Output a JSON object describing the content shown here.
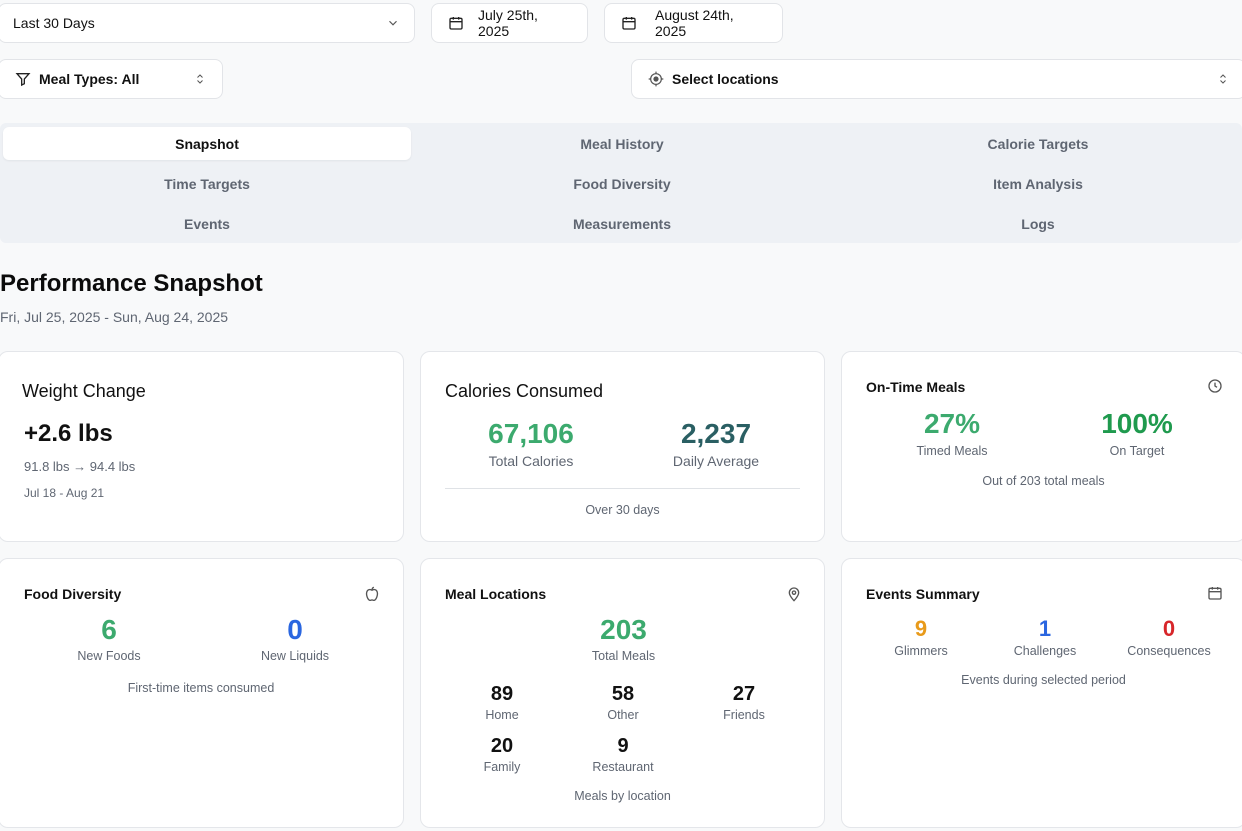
{
  "filters": {
    "range_label": "Last 30 Days",
    "start_date": "July 25th, 2025",
    "end_date": "August 24th, 2025",
    "meal_types_label": "Meal Types: All",
    "locations_label": "Select locations"
  },
  "tabs": [
    {
      "label": "Snapshot",
      "active": true
    },
    {
      "label": "Meal History"
    },
    {
      "label": "Calorie Targets"
    },
    {
      "label": "Time Targets"
    },
    {
      "label": "Food Diversity"
    },
    {
      "label": "Item Analysis"
    },
    {
      "label": "Events"
    },
    {
      "label": "Measurements"
    },
    {
      "label": "Logs"
    }
  ],
  "page": {
    "title": "Performance Snapshot",
    "date_range": "Fri, Jul 25, 2025 - Sun, Aug 24, 2025"
  },
  "weight_change": {
    "title": "Weight Change",
    "value": "+2.6 lbs",
    "detail": "91.8 lbs → 94.4 lbs",
    "period": "Jul 18 - Aug 21"
  },
  "calories": {
    "title": "Calories Consumed",
    "total": "67,106",
    "total_label": "Total Calories",
    "average": "2,237",
    "average_label": "Daily Average",
    "footer": "Over 30 days"
  },
  "on_time": {
    "title": "On-Time Meals",
    "icon": "clock-icon",
    "timed": "27%",
    "timed_label": "Timed Meals",
    "on_target": "100%",
    "on_target_label": "On Target",
    "footer": "Out of 203 total meals"
  },
  "food_diversity": {
    "title": "Food Diversity",
    "icon": "apple-icon",
    "new_foods": "6",
    "new_foods_label": "New Foods",
    "new_liquids": "0",
    "new_liquids_label": "New Liquids",
    "footer": "First-time items consumed"
  },
  "meal_locations": {
    "title": "Meal Locations",
    "icon": "map-pin-icon",
    "total": "203",
    "total_label": "Total Meals",
    "items": [
      {
        "value": "89",
        "label": "Home"
      },
      {
        "value": "58",
        "label": "Other"
      },
      {
        "value": "27",
        "label": "Friends"
      },
      {
        "value": "20",
        "label": "Family"
      },
      {
        "value": "9",
        "label": "Restaurant"
      }
    ],
    "footer": "Meals by location"
  },
  "events": {
    "title": "Events Summary",
    "icon": "calendar-icon",
    "glimmers": "9",
    "glimmers_label": "Glimmers",
    "challenges": "1",
    "challenges_label": "Challenges",
    "consequences": "0",
    "consequences_label": "Consequences",
    "footer": "Events during selected period"
  },
  "colors": {
    "green": "#3caa6e",
    "dark_green": "#1f9a4e",
    "teal": "#2a5f63",
    "blue": "#2a66e0",
    "orange": "#e89a1a",
    "red": "#d7262a"
  }
}
